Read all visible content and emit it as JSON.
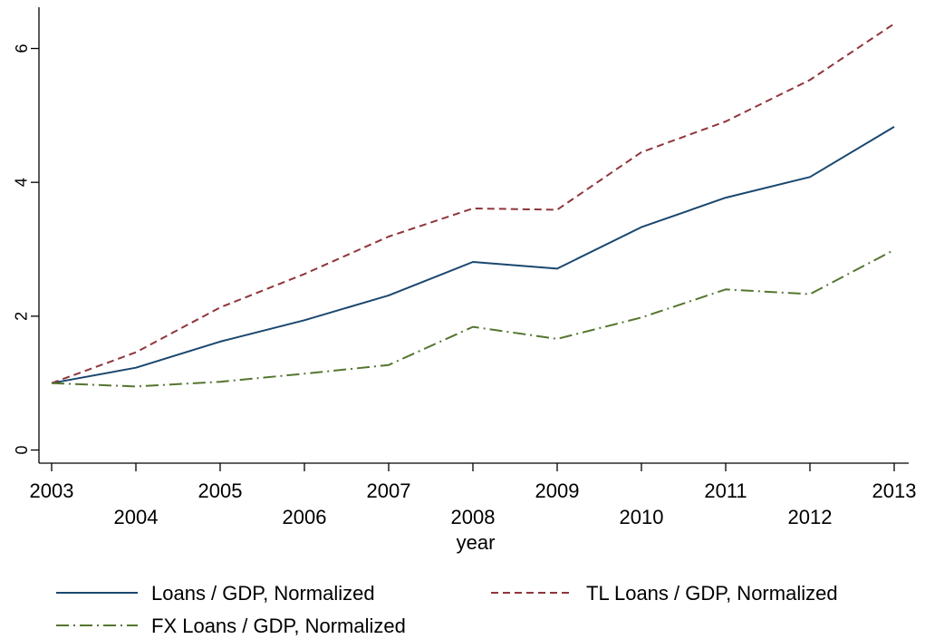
{
  "chart_data": {
    "type": "line",
    "xlabel": "year",
    "ylabel": "",
    "x": [
      2003,
      2004,
      2005,
      2006,
      2007,
      2008,
      2009,
      2010,
      2011,
      2012,
      2013
    ],
    "x_ticks": [
      "2003",
      "2004",
      "2005",
      "2006",
      "2007",
      "2008",
      "2009",
      "2010",
      "2011",
      "2012",
      "2013"
    ],
    "y_ticks": [
      "0",
      "2",
      "4",
      "6"
    ],
    "xlim": [
      2003,
      2013
    ],
    "ylim": [
      -0.2,
      6.6
    ],
    "grid": false,
    "legend_position": "bottom",
    "series": [
      {
        "name": "Loans / GDP, Normalized",
        "color": "#1a476f",
        "dash": "solid",
        "values": [
          1.0,
          1.23,
          1.62,
          1.94,
          2.31,
          2.81,
          2.71,
          3.33,
          3.77,
          4.08,
          4.83
        ]
      },
      {
        "name": "TL Loans / GDP, Normalized",
        "color": "#90353b",
        "dash": "dashed",
        "values": [
          1.0,
          1.46,
          2.13,
          2.63,
          3.19,
          3.61,
          3.59,
          4.45,
          4.91,
          5.53,
          6.37
        ]
      },
      {
        "name": "FX Loans / GDP, Normalized",
        "color": "#55752f",
        "dash": "dash-dot",
        "values": [
          1.0,
          0.95,
          1.02,
          1.14,
          1.27,
          1.84,
          1.66,
          1.98,
          2.4,
          2.33,
          2.99
        ]
      }
    ]
  }
}
